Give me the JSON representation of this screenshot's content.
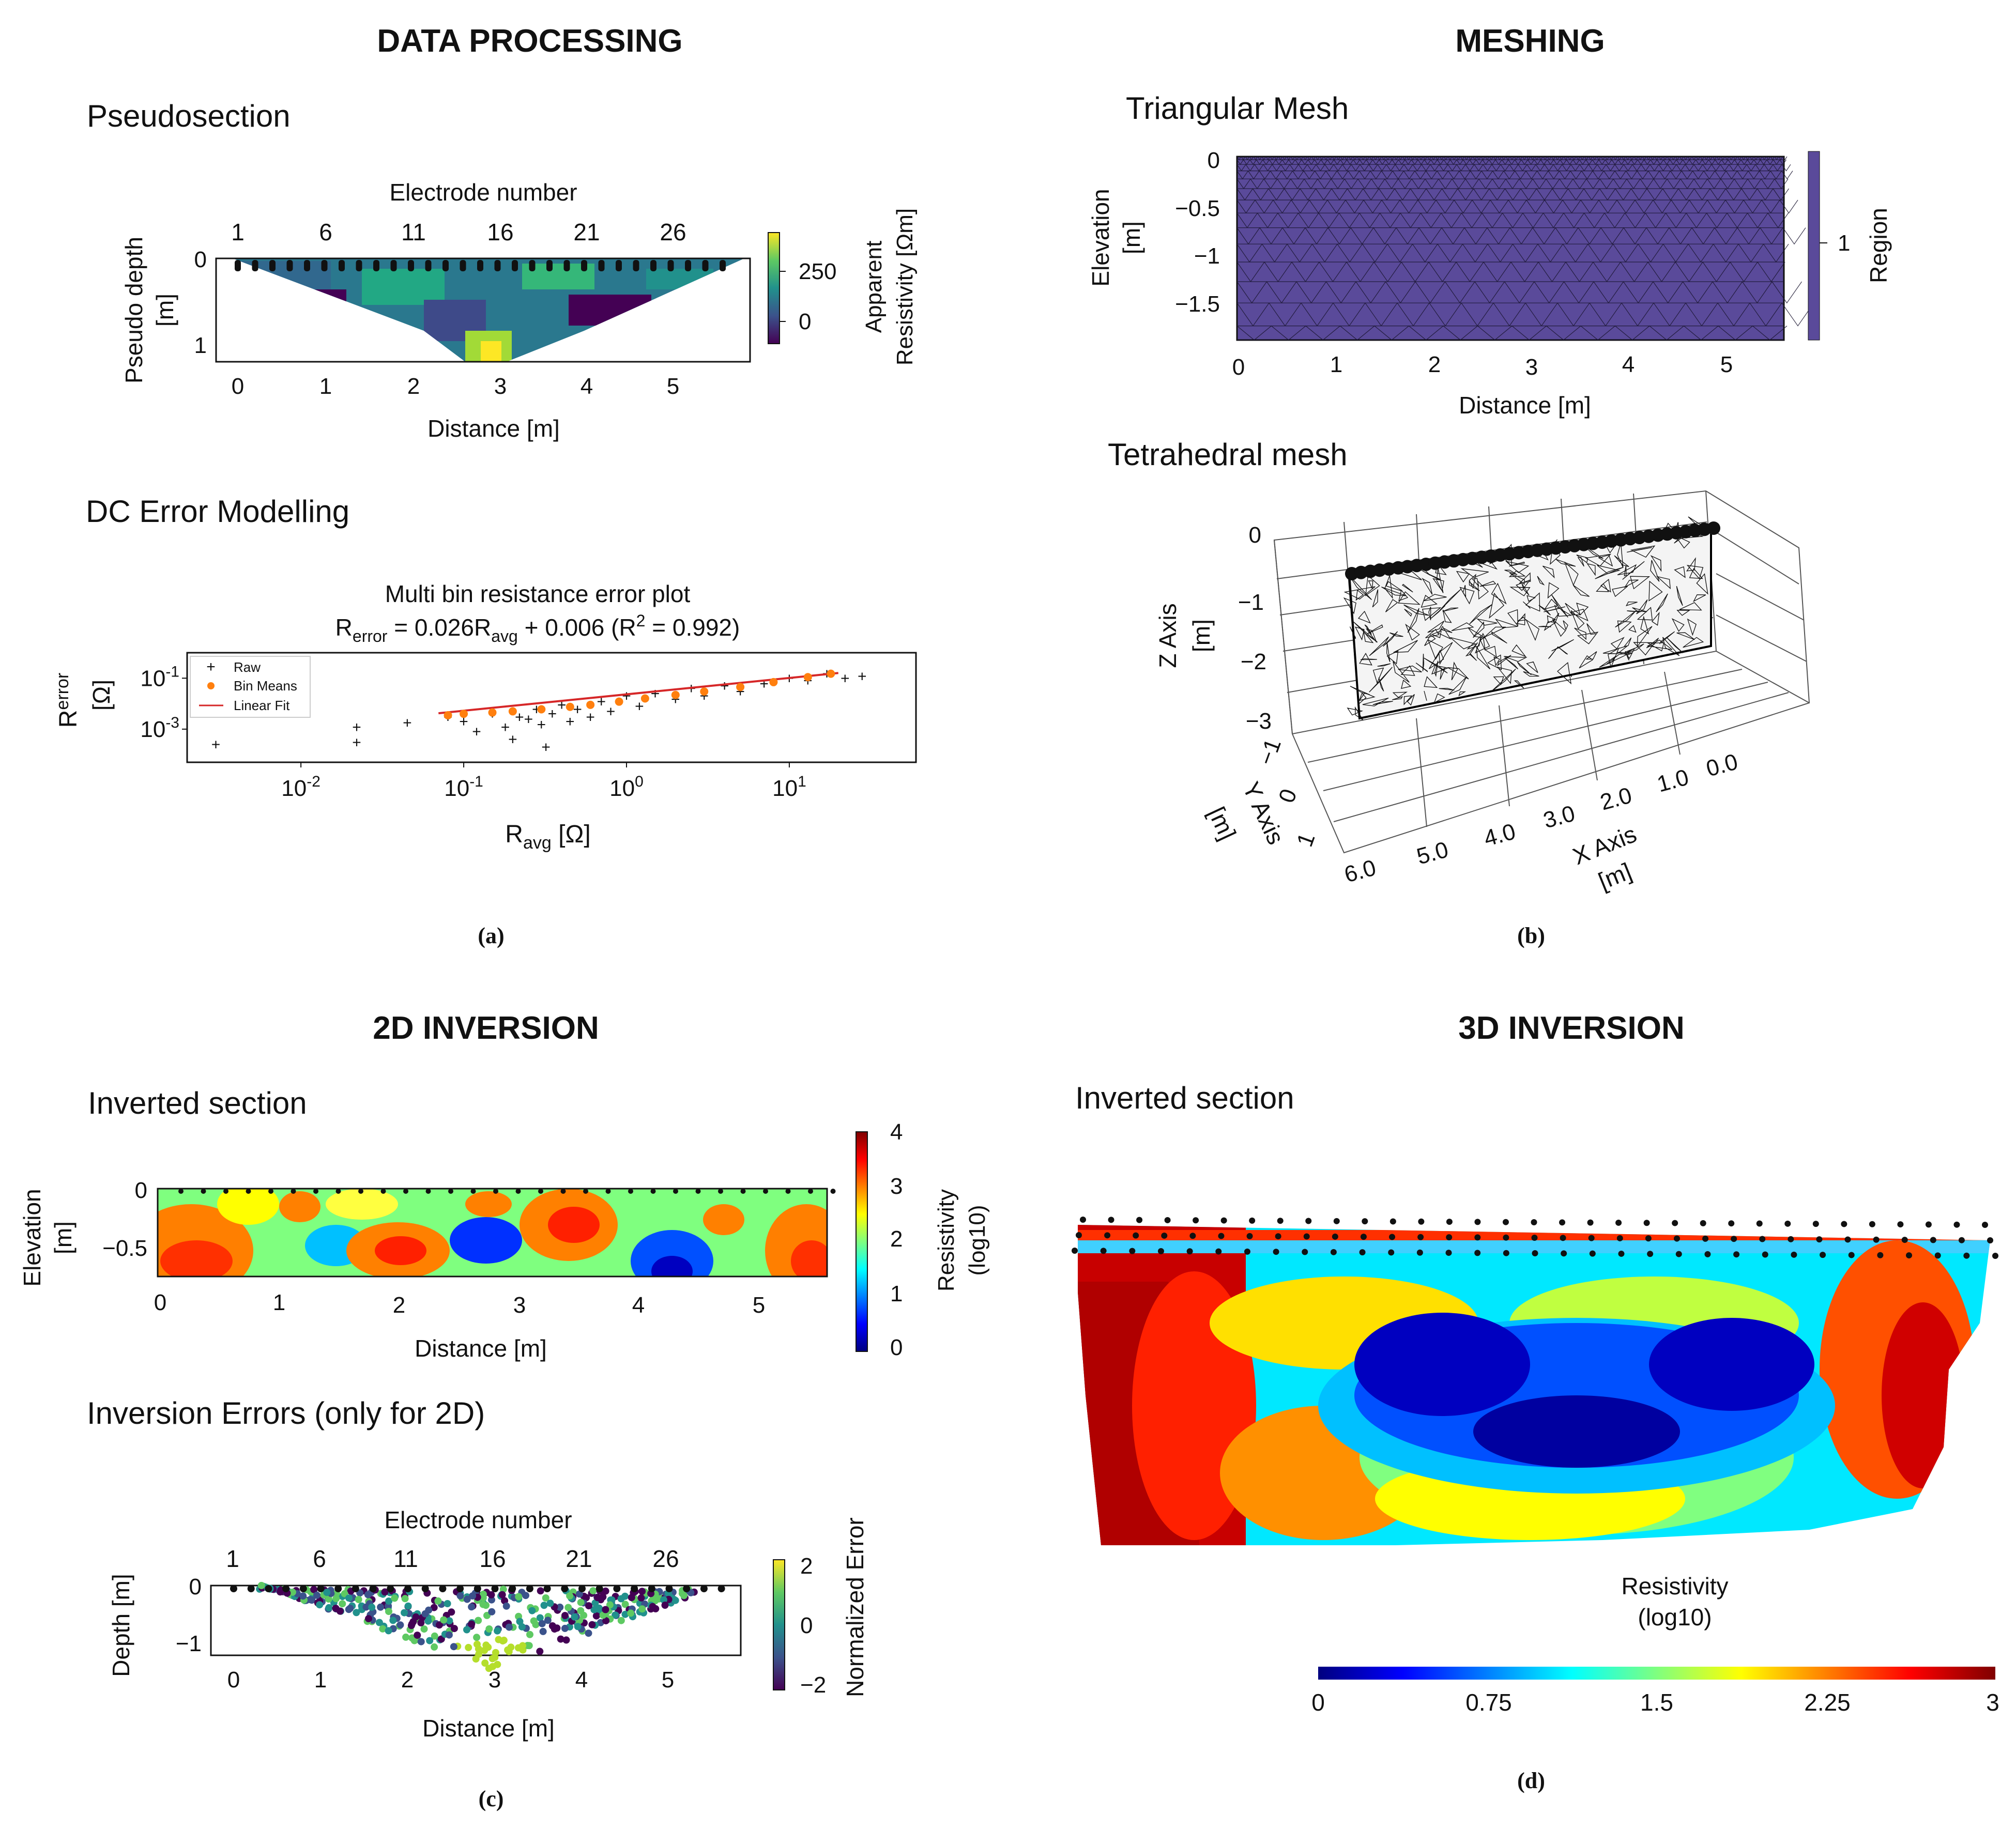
{
  "colors": {
    "viridis": [
      "#440154",
      "#3b528b",
      "#21918c",
      "#5ec962",
      "#fde725"
    ],
    "jet": [
      "#00007f",
      "#0000ff",
      "#007fff",
      "#00ffff",
      "#7fff7f",
      "#ffff00",
      "#ff7f00",
      "#ff0000",
      "#7f0000"
    ],
    "mesh_fill": "#5a4a9a",
    "raw_points": "#1f77b4",
    "bin_means": "#ff7f0e",
    "linear_fit": "#d62728"
  },
  "sections": {
    "data_processing": "DATA PROCESSING",
    "meshing": "MESHING",
    "inversion_2d": "2D INVERSION",
    "inversion_3d": "3D INVERSION"
  },
  "panel_labels": {
    "a": "(a)",
    "b": "(b)",
    "c": "(c)",
    "d": "(d)"
  },
  "pseudosection": {
    "heading": "Pseudosection",
    "top_label": "Electrode number",
    "electrode_ticks": [
      "1",
      "6",
      "11",
      "16",
      "21",
      "26"
    ],
    "ylabel": "Pseudo depth\n[m]",
    "yticks": [
      "0",
      "1"
    ],
    "xticks": [
      "0",
      "1",
      "2",
      "3",
      "4",
      "5"
    ],
    "xlabel": "Distance [m]",
    "cbar_ticks": [
      "250",
      "0"
    ],
    "cbar_label_1": "Apparent",
    "cbar_label_2": "Resistivity [Ωm]"
  },
  "error_model": {
    "heading": "DC Error Modelling",
    "title": "Multi bin resistance error plot",
    "eq_prefix": "R",
    "eq_sub1": "error",
    "eq_mid": " = 0.026R",
    "eq_sub2": "avg",
    "eq_tail": " + 0.006 (R",
    "eq_sup": "2",
    "eq_end": " = 0.992)",
    "ylabel_main": "R",
    "ylabel_sub": "error",
    "ylabel_unit": "[Ω]",
    "xlabel_main": "R",
    "xlabel_sub": "avg",
    "xlabel_unit": " [Ω]",
    "xtick_exps": [
      "-2",
      "-1",
      "0",
      "1"
    ],
    "ytick_exps": [
      "-1",
      "-3"
    ],
    "tick_base": "10",
    "legend": [
      "Raw",
      "Bin Means",
      "Linear Fit"
    ]
  },
  "tri_mesh": {
    "heading": "Triangular Mesh",
    "ylabel_1": "Elevation",
    "ylabel_2": "[m]",
    "yticks": [
      "0",
      "−0.5",
      "−1",
      "−1.5"
    ],
    "xticks": [
      "0",
      "1",
      "2",
      "3",
      "4",
      "5"
    ],
    "xlabel": "Distance [m]",
    "cbar_tick": "1",
    "cbar_label": "Region"
  },
  "tet_mesh": {
    "heading": "Tetrahedral mesh",
    "zlabel_1": "Z Axis",
    "zlabel_2": "[m]",
    "zticks": [
      "0",
      "−1",
      "−2",
      "−3"
    ],
    "ylabel_1": "Y Axis",
    "ylabel_2": "[m]",
    "yticks": [
      "−1",
      "0",
      "1"
    ],
    "xlabel_1": "X Axis",
    "xlabel_2": "[m]",
    "xticks": [
      "6.0",
      "5.0",
      "4.0",
      "3.0",
      "2.0",
      "1.0",
      "0.0"
    ]
  },
  "inv2d": {
    "heading": "Inverted section",
    "ylabel_1": "Elevation",
    "ylabel_2": "[m]",
    "yticks": [
      "0",
      "−0.5"
    ],
    "xticks": [
      "0",
      "1",
      "2",
      "3",
      "4",
      "5"
    ],
    "xlabel": "Distance [m]",
    "cbar_ticks": [
      "4",
      "3",
      "2",
      "1",
      "0"
    ],
    "cbar_label_1": "Resistivity",
    "cbar_label_2": "(log10)"
  },
  "inv_errors": {
    "heading": "Inversion Errors (only for 2D)",
    "top_label": "Electrode number",
    "electrode_ticks": [
      "1",
      "6",
      "11",
      "16",
      "21",
      "26"
    ],
    "ylabel": "Depth [m]",
    "yticks": [
      "0",
      "−1"
    ],
    "xticks": [
      "0",
      "1",
      "2",
      "3",
      "4",
      "5"
    ],
    "xlabel": "Distance [m]",
    "cbar_ticks": [
      "2",
      "0",
      "−2"
    ],
    "cbar_label": "Normalized Error"
  },
  "inv3d": {
    "heading": "Inverted section",
    "cbar_label_1": "Resistivity",
    "cbar_label_2": "(log10)",
    "cbar_ticks": [
      "0",
      "0.75",
      "1.5",
      "2.25",
      "3"
    ]
  },
  "chart_data": [
    {
      "type": "heatmap",
      "title": "Pseudosection",
      "xlabel": "Distance [m]",
      "ylabel": "Pseudo depth [m]",
      "xlim": [
        -0.2,
        5.8
      ],
      "ylim": [
        1.15,
        0
      ],
      "electrodes": 29,
      "colorbar": {
        "label": "Apparent Resistivity [Ωm]",
        "range": [
          -50,
          350
        ]
      }
    },
    {
      "type": "scatter",
      "title": "Multi bin resistance error plot",
      "xlabel": "Ravg [Ω]",
      "ylabel": "Rerror [Ω]",
      "xscale": "log",
      "yscale": "log",
      "xlim": [
        0.002,
        60
      ],
      "ylim": [
        5e-05,
        1
      ],
      "fit": {
        "slope": 0.026,
        "intercept": 0.006,
        "r2": 0.992
      },
      "series": [
        {
          "name": "Raw",
          "x": [
            0.003,
            0.022,
            0.022,
            0.045,
            0.08,
            0.1,
            0.12,
            0.15,
            0.18,
            0.2,
            0.22,
            0.25,
            0.28,
            0.3,
            0.32,
            0.35,
            0.4,
            0.45,
            0.5,
            0.6,
            0.7,
            0.8,
            1.0,
            1.2,
            1.5,
            2.0,
            2.5,
            3.0,
            4.0,
            5.0,
            7.0,
            10,
            13,
            17,
            22,
            28
          ],
          "y": [
            0.00025,
            0.0012,
            0.0003,
            0.0018,
            0.003,
            0.002,
            0.0008,
            0.004,
            0.0012,
            0.0004,
            0.003,
            0.0025,
            0.006,
            0.0015,
            0.0002,
            0.004,
            0.009,
            0.002,
            0.006,
            0.003,
            0.012,
            0.005,
            0.02,
            0.008,
            0.025,
            0.015,
            0.04,
            0.02,
            0.05,
            0.03,
            0.06,
            0.1,
            0.08,
            0.15,
            0.1,
            0.12
          ]
        },
        {
          "name": "Bin Means",
          "x": [
            0.08,
            0.1,
            0.15,
            0.2,
            0.3,
            0.45,
            0.6,
            0.9,
            1.3,
            2.0,
            3.0,
            5.0,
            8.0,
            13,
            18
          ],
          "y": [
            0.0035,
            0.004,
            0.0045,
            0.005,
            0.006,
            0.0075,
            0.009,
            0.012,
            0.016,
            0.022,
            0.03,
            0.045,
            0.07,
            0.11,
            0.15
          ]
        },
        {
          "name": "Linear Fit",
          "x": [
            0.07,
            20
          ],
          "y": [
            0.0042,
            0.16
          ]
        }
      ]
    },
    {
      "type": "heatmap",
      "title": "Triangular Mesh",
      "xlabel": "Distance [m]",
      "ylabel": "Elevation [m]",
      "xlim": [
        0,
        5.6
      ],
      "ylim": [
        -1.9,
        0
      ],
      "colorbar": {
        "label": "Region",
        "ticks": [
          1
        ]
      }
    },
    {
      "type": "heatmap",
      "title": "Inverted section",
      "xlabel": "Distance [m]",
      "ylabel": "Elevation [m]",
      "xlim": [
        0,
        5.6
      ],
      "ylim": [
        -0.75,
        0
      ],
      "colorbar": {
        "label": "Resistivity (log10)",
        "range": [
          0,
          4
        ]
      }
    },
    {
      "type": "scatter",
      "title": "Inversion Errors (only for 2D)",
      "xlabel": "Distance [m]",
      "ylabel": "Depth [m]",
      "xlim": [
        -0.2,
        5.9
      ],
      "ylim": [
        -1.3,
        0
      ],
      "colorbar": {
        "label": "Normalized Error",
        "range": [
          -2,
          2
        ]
      }
    },
    {
      "type": "heatmap",
      "title": "Inverted section (3D)",
      "colorbar": {
        "label": "Resistivity (log10)",
        "range": [
          0,
          3
        ]
      }
    }
  ]
}
